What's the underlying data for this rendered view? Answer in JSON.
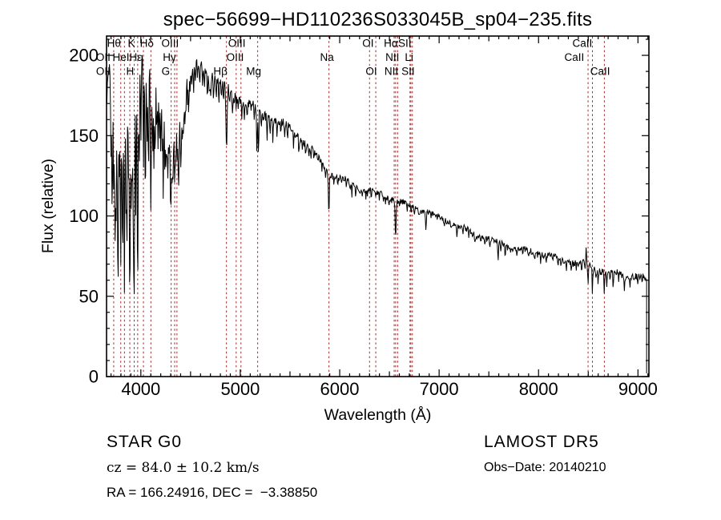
{
  "title": "spec−56699−HD110236S033045B_sp04−235.fits",
  "annotations": {
    "object_class": "STAR",
    "subclass": "G0",
    "cz_text": "cz = 84.0 ± 10.2 km/s",
    "radec_text": "RA = 166.24916, DEC =  −3.38850",
    "survey_text": "LAMOST DR5",
    "obsdate_text": "Obs−Date: 20140210"
  },
  "chart_data": {
    "type": "line",
    "title": "spec−56699−HD110236S033045B_sp04−235.fits",
    "xlabel": "Wavelength (Å)",
    "ylabel": "Flux (relative)",
    "xlim": [
      3655,
      9110
    ],
    "ylim": [
      0,
      212
    ],
    "x_ticks_major": [
      4000,
      5000,
      6000,
      7000,
      8000,
      9000
    ],
    "x_tick_minor_step": 100,
    "y_ticks_major": [
      0,
      50,
      100,
      150,
      200
    ],
    "y_tick_minor_step": 10,
    "grid": false,
    "legend": "none",
    "spectrum_color": "#000000",
    "marker_line_color": "#a12b2b",
    "continuum_points": [
      [
        3658,
        170
      ],
      [
        3680,
        188
      ],
      [
        3720,
        193
      ],
      [
        3780,
        194
      ],
      [
        3860,
        194
      ],
      [
        3940,
        197
      ],
      [
        4000,
        198
      ],
      [
        4060,
        194
      ],
      [
        4101,
        191
      ],
      [
        4150,
        192
      ],
      [
        4200,
        189
      ],
      [
        4260,
        184
      ],
      [
        4310,
        181
      ],
      [
        4360,
        184
      ],
      [
        4420,
        190
      ],
      [
        4470,
        194
      ],
      [
        4520,
        196
      ],
      [
        4580,
        196
      ],
      [
        4640,
        194
      ],
      [
        4700,
        192
      ],
      [
        4760,
        189
      ],
      [
        4810,
        187
      ],
      [
        4861,
        181
      ],
      [
        4920,
        177
      ],
      [
        4980,
        174
      ],
      [
        5040,
        172
      ],
      [
        5100,
        170
      ],
      [
        5175,
        165
      ],
      [
        5240,
        162
      ],
      [
        5320,
        159
      ],
      [
        5400,
        157
      ],
      [
        5480,
        154
      ],
      [
        5560,
        150
      ],
      [
        5640,
        146
      ],
      [
        5720,
        141
      ],
      [
        5800,
        135
      ],
      [
        5860,
        130
      ],
      [
        5892,
        127
      ],
      [
        5960,
        126
      ],
      [
        6030,
        124
      ],
      [
        6100,
        122
      ],
      [
        6180,
        119
      ],
      [
        6260,
        117
      ],
      [
        6340,
        115
      ],
      [
        6420,
        113
      ],
      [
        6500,
        111
      ],
      [
        6563,
        109
      ],
      [
        6640,
        107
      ],
      [
        6720,
        105
      ],
      [
        6800,
        103
      ],
      [
        6880,
        101
      ],
      [
        6960,
        100
      ],
      [
        7040,
        98
      ],
      [
        7120,
        96
      ],
      [
        7200,
        94
      ],
      [
        7280,
        92
      ],
      [
        7360,
        89
      ],
      [
        7440,
        88
      ],
      [
        7520,
        86
      ],
      [
        7600,
        84
      ],
      [
        7680,
        82
      ],
      [
        7760,
        80
      ],
      [
        7840,
        78
      ],
      [
        7920,
        77
      ],
      [
        8000,
        76
      ],
      [
        8080,
        74
      ],
      [
        8160,
        73
      ],
      [
        8240,
        72
      ],
      [
        8320,
        71
      ],
      [
        8400,
        70
      ],
      [
        8480,
        70
      ],
      [
        8560,
        68
      ],
      [
        8640,
        67
      ],
      [
        8720,
        66
      ],
      [
        8800,
        65
      ],
      [
        8880,
        64
      ],
      [
        8960,
        63
      ],
      [
        9030,
        62
      ],
      [
        9085,
        60
      ]
    ],
    "absorption_lines": [
      [
        3700,
        60,
        4
      ],
      [
        3712,
        90,
        4
      ],
      [
        3727,
        75,
        4
      ],
      [
        3740,
        110,
        4
      ],
      [
        3750,
        95,
        4
      ],
      [
        3762,
        60,
        4
      ],
      [
        3771,
        135,
        4
      ],
      [
        3785,
        70,
        4
      ],
      [
        3798,
        125,
        4
      ],
      [
        3812,
        80,
        4
      ],
      [
        3820,
        95,
        4
      ],
      [
        3835,
        140,
        4
      ],
      [
        3850,
        90,
        4
      ],
      [
        3860,
        110,
        4
      ],
      [
        3875,
        70,
        4
      ],
      [
        3889,
        150,
        5
      ],
      [
        3903,
        85,
        4
      ],
      [
        3912,
        70,
        4
      ],
      [
        3923,
        90,
        4
      ],
      [
        3933,
        150,
        5
      ],
      [
        3950,
        100,
        4
      ],
      [
        3968,
        145,
        5
      ],
      [
        3984,
        70,
        4
      ],
      [
        4000,
        55,
        4
      ],
      [
        4026,
        70,
        4
      ],
      [
        4045,
        90,
        4
      ],
      [
        4063,
        55,
        4
      ],
      [
        4077,
        65,
        4
      ],
      [
        4101,
        85,
        5
      ],
      [
        4120,
        55,
        4
      ],
      [
        4132,
        60,
        4
      ],
      [
        4144,
        55,
        4
      ],
      [
        4160,
        45,
        4
      ],
      [
        4173,
        55,
        4
      ],
      [
        4187,
        45,
        4
      ],
      [
        4200,
        55,
        4
      ],
      [
        4215,
        50,
        4
      ],
      [
        4226,
        80,
        4
      ],
      [
        4240,
        55,
        4
      ],
      [
        4250,
        60,
        4
      ],
      [
        4260,
        50,
        4
      ],
      [
        4271,
        65,
        4
      ],
      [
        4283,
        55,
        4
      ],
      [
        4296,
        60,
        4
      ],
      [
        4305,
        65,
        5
      ],
      [
        4315,
        55,
        4
      ],
      [
        4325,
        60,
        4
      ],
      [
        4340,
        70,
        5
      ],
      [
        4352,
        50,
        4
      ],
      [
        4365,
        45,
        4
      ],
      [
        4375,
        40,
        4
      ],
      [
        4383,
        55,
        4
      ],
      [
        4395,
        40,
        4
      ],
      [
        4404,
        45,
        4
      ],
      [
        4415,
        35,
        4
      ],
      [
        4425,
        30,
        4
      ],
      [
        4435,
        25,
        4
      ],
      [
        4445,
        28,
        4
      ],
      [
        4455,
        25,
        4
      ],
      [
        4470,
        20,
        4
      ],
      [
        4481,
        28,
        4
      ],
      [
        4495,
        18,
        4
      ],
      [
        4510,
        15,
        4
      ],
      [
        4531,
        22,
        4
      ],
      [
        4550,
        14,
        4
      ],
      [
        4570,
        12,
        4
      ],
      [
        4590,
        14,
        4
      ],
      [
        4620,
        12,
        4
      ],
      [
        4640,
        10,
        4
      ],
      [
        4668,
        18,
        4
      ],
      [
        4690,
        10,
        4
      ],
      [
        4703,
        14,
        4
      ],
      [
        4730,
        10,
        4
      ],
      [
        4760,
        10,
        4
      ],
      [
        4785,
        12,
        4
      ],
      [
        4810,
        10,
        4
      ],
      [
        4830,
        12,
        4
      ],
      [
        4861,
        40,
        6
      ],
      [
        4890,
        10,
        4
      ],
      [
        4921,
        14,
        4
      ],
      [
        4940,
        8,
        3
      ],
      [
        4958,
        8,
        3
      ],
      [
        4980,
        8,
        3
      ],
      [
        5015,
        12,
        3
      ],
      [
        5041,
        10,
        3
      ],
      [
        5070,
        8,
        3
      ],
      [
        5110,
        8,
        3
      ],
      [
        5140,
        10,
        3
      ],
      [
        5167,
        26,
        4
      ],
      [
        5183,
        28,
        4
      ],
      [
        5210,
        10,
        3
      ],
      [
        5230,
        8,
        3
      ],
      [
        5270,
        16,
        3
      ],
      [
        5300,
        8,
        3
      ],
      [
        5328,
        12,
        3
      ],
      [
        5371,
        10,
        3
      ],
      [
        5406,
        9,
        3
      ],
      [
        5446,
        8,
        3
      ],
      [
        5476,
        7,
        3
      ],
      [
        5535,
        9,
        3
      ],
      [
        5589,
        7,
        3
      ],
      [
        5625,
        6,
        3
      ],
      [
        5658,
        7,
        3
      ],
      [
        5690,
        6,
        3
      ],
      [
        5711,
        7,
        3
      ],
      [
        5740,
        5,
        3
      ],
      [
        5782,
        6,
        3
      ],
      [
        5820,
        5,
        3
      ],
      [
        5857,
        6,
        3
      ],
      [
        5891,
        26,
        4
      ],
      [
        5940,
        5,
        3
      ],
      [
        5980,
        4,
        3
      ],
      [
        6020,
        5,
        3
      ],
      [
        6065,
        4,
        3
      ],
      [
        6103,
        6,
        3
      ],
      [
        6122,
        7,
        3
      ],
      [
        6162,
        7,
        3
      ],
      [
        6200,
        4,
        3
      ],
      [
        6230,
        4,
        3
      ],
      [
        6262,
        5,
        3
      ],
      [
        6280,
        4,
        3
      ],
      [
        6318,
        4,
        3
      ],
      [
        6360,
        4,
        3
      ],
      [
        6400,
        4,
        3
      ],
      [
        6439,
        5,
        3
      ],
      [
        6462,
        4,
        3
      ],
      [
        6495,
        5,
        3
      ],
      [
        6563,
        22,
        5
      ],
      [
        6600,
        4,
        3
      ],
      [
        6680,
        4,
        3
      ],
      [
        6717,
        5,
        3
      ],
      [
        6750,
        4,
        3
      ],
      [
        6800,
        4,
        3
      ],
      [
        6867,
        10,
        4
      ],
      [
        6920,
        4,
        3
      ],
      [
        6980,
        4,
        3
      ],
      [
        7050,
        4,
        3
      ],
      [
        7120,
        4,
        3
      ],
      [
        7180,
        6,
        4
      ],
      [
        7240,
        4,
        3
      ],
      [
        7300,
        4,
        3
      ],
      [
        7360,
        4,
        3
      ],
      [
        7420,
        4,
        3
      ],
      [
        7460,
        4,
        3
      ],
      [
        7510,
        4,
        3
      ],
      [
        7594,
        11,
        4
      ],
      [
        7620,
        6,
        3
      ],
      [
        7665,
        7,
        3
      ],
      [
        7720,
        4,
        3
      ],
      [
        7780,
        4,
        3
      ],
      [
        7840,
        4,
        3
      ],
      [
        7900,
        4,
        3
      ],
      [
        7960,
        4,
        3
      ],
      [
        8020,
        4,
        3
      ],
      [
        8080,
        4,
        3
      ],
      [
        8140,
        4,
        3
      ],
      [
        8195,
        5,
        3
      ],
      [
        8226,
        6,
        3
      ],
      [
        8280,
        4,
        3
      ],
      [
        8330,
        4,
        3
      ],
      [
        8380,
        4,
        3
      ],
      [
        8434,
        6,
        3
      ],
      [
        8468,
        5,
        3
      ],
      [
        8480,
        -9,
        3
      ],
      [
        8498,
        13,
        3
      ],
      [
        8542,
        15,
        3
      ],
      [
        8580,
        5,
        3
      ],
      [
        8598,
        6,
        3
      ],
      [
        8662,
        14,
        3
      ],
      [
        8688,
        9,
        3
      ],
      [
        8720,
        5,
        3
      ],
      [
        8750,
        12,
        3
      ],
      [
        8806,
        7,
        3
      ],
      [
        8865,
        10,
        3
      ],
      [
        8920,
        5,
        3
      ],
      [
        8960,
        4,
        3
      ],
      [
        9000,
        6,
        3
      ],
      [
        9040,
        5,
        3
      ]
    ],
    "noise_segments": [
      [
        3658,
        4430,
        7.5
      ],
      [
        4430,
        4900,
        4.5
      ],
      [
        4900,
        5600,
        3.2
      ],
      [
        5600,
        6600,
        2.3
      ],
      [
        6600,
        7600,
        2.0
      ],
      [
        7600,
        9085,
        2.3
      ]
    ],
    "end_drop": {
      "wavelength": 9087,
      "flux": 2
    },
    "spectral_markers": {
      "dotted_lines": [
        3727,
        3798,
        3835,
        3889,
        3933,
        3968,
        4026,
        4101,
        4305,
        4340,
        4363,
        4861,
        4959,
        5007,
        5175,
        5892,
        6300,
        6363,
        6548,
        6563,
        6583,
        6707,
        6716,
        6731,
        8498,
        8542,
        8662
      ],
      "labels": [
        {
          "text": "Hθ",
          "at": 3730,
          "row": 1
        },
        {
          "text": "K",
          "at": 3905,
          "row": 1
        },
        {
          "text": "Hδ",
          "at": 4060,
          "row": 1
        },
        {
          "text": "OIII",
          "at": 4295,
          "row": 1
        },
        {
          "text": "OIII",
          "at": 4965,
          "row": 1
        },
        {
          "text": "OI",
          "at": 6285,
          "row": 1
        },
        {
          "text": "Hα",
          "at": 6515,
          "row": 1
        },
        {
          "text": "SII",
          "at": 6655,
          "row": 1
        },
        {
          "text": "CaII",
          "at": 8440,
          "row": 1
        },
        {
          "text": "OII",
          "at": 3622,
          "row": 2
        },
        {
          "text": "HeI",
          "at": 3800,
          "row": 2
        },
        {
          "text": "Hε",
          "at": 3948,
          "row": 2
        },
        {
          "text": "Hγ",
          "at": 4288,
          "row": 2
        },
        {
          "text": "OIII",
          "at": 4948,
          "row": 2
        },
        {
          "text": "Na",
          "at": 5872,
          "row": 2
        },
        {
          "text": "NII",
          "at": 6530,
          "row": 2
        },
        {
          "text": "Li",
          "at": 6698,
          "row": 2
        },
        {
          "text": "CaII",
          "at": 8360,
          "row": 2
        },
        {
          "text": "OII",
          "at": 3622,
          "row": 3
        },
        {
          "text": "H",
          "at": 3892,
          "row": 3
        },
        {
          "text": "G",
          "at": 4250,
          "row": 3
        },
        {
          "text": "Hβ",
          "at": 4800,
          "row": 3
        },
        {
          "text": "Mg",
          "at": 5135,
          "row": 3
        },
        {
          "text": "OI",
          "at": 6318,
          "row": 3
        },
        {
          "text": "NII",
          "at": 6520,
          "row": 3
        },
        {
          "text": "SII",
          "at": 6688,
          "row": 3
        },
        {
          "text": "CaII",
          "at": 8620,
          "row": 3
        }
      ]
    }
  }
}
